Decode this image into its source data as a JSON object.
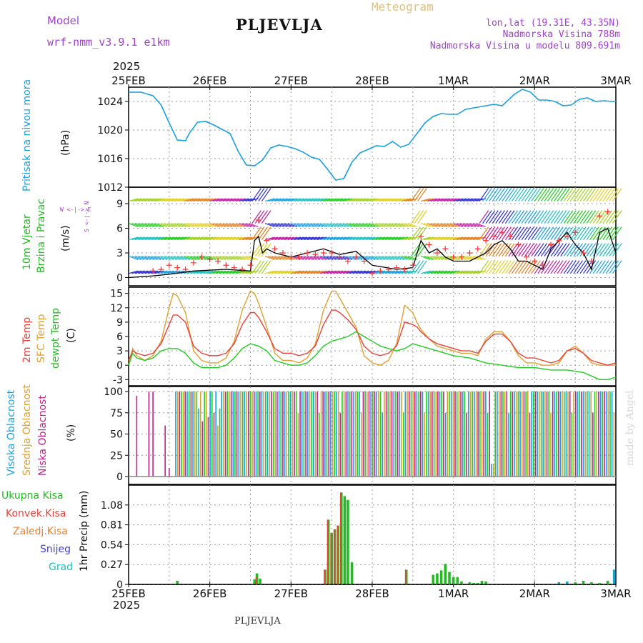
{
  "header": {
    "model_label": "Model",
    "model_name": "wrf-nmm_v3.9.1 e1km",
    "station": "PLJEVLJA",
    "product": "Meteogram",
    "lonlat": "lon,lat (19.31E, 43.35N)",
    "elevation": "Nadmorska Visina 788m",
    "model_elevation": "Nadmorska Visina u modelu 809.691m",
    "year_top": "2025",
    "year_bottom": "2025",
    "footer_station": "PLJEVLJA",
    "watermark": "made by Angel"
  },
  "colors": {
    "pressure": "#1aa0e0",
    "temp2m": "#e8403a",
    "sfc_temp": "#e0a030",
    "dewpt": "#22cc22",
    "high_cloud": "#1aa0e0",
    "mid_cloud": "#e0a030",
    "low_cloud": "#c0208a",
    "total_precip": "#22bb22",
    "conv_precip": "#e8403a",
    "frozen_precip": "#ee8030",
    "snow": "#4040e0",
    "hail": "#20c0c0",
    "wind_speed": "#000000",
    "wind_gust": "#ff3030"
  },
  "x_ticks": [
    "25FEB",
    "26FEB",
    "27FEB",
    "28FEB",
    "1MAR",
    "2MAR",
    "3MAR"
  ],
  "panel_labels": {
    "pressure": {
      "title": "Pritisak na nivou mora",
      "unit": "(hPa)"
    },
    "wind": {
      "line1": "10m Vjetar",
      "line2": "Brzina i Pravac",
      "unit": "(m/s)",
      "compass": "W <-|-> E",
      "compass_vert": "S <-|-> N"
    },
    "temp": {
      "t2m": "2m Temp",
      "sfc": "SFC Temp",
      "dew": "dewpt Temp",
      "unit": "(C)"
    },
    "cloud": {
      "high": "Visoka Oblacnost",
      "mid": "Srednja Oblacnost",
      "low": "Niska Oblacnost",
      "unit": "(%)"
    },
    "precip": {
      "unit": "1hr Precip (mm)",
      "legend": [
        "Ukupna Kisa",
        "Konvek.Kisa",
        "Zaledj.Kisa",
        "Snijeg",
        "Grad"
      ]
    }
  },
  "chart_data": [
    {
      "type": "line",
      "panel": "pressure",
      "xlabel": "",
      "ylabel": "(hPa)",
      "x_range_days": [
        0,
        6
      ],
      "ylim": [
        1012,
        1026
      ],
      "yticks": [
        1012,
        1016,
        1020,
        1024
      ],
      "series": [
        {
          "name": "Pritisak na nivou mora",
          "x": [
            0,
            0.15,
            0.3,
            0.4,
            0.5,
            0.6,
            0.7,
            0.75,
            0.85,
            0.95,
            1.05,
            1.15,
            1.25,
            1.35,
            1.45,
            1.55,
            1.65,
            1.75,
            1.85,
            1.95,
            2.05,
            2.15,
            2.25,
            2.35,
            2.45,
            2.55,
            2.65,
            2.75,
            2.85,
            2.95,
            3.05,
            3.15,
            3.25,
            3.35,
            3.45,
            3.55,
            3.65,
            3.75,
            3.85,
            3.95,
            4.05,
            4.15,
            4.25,
            4.35,
            4.5,
            4.6,
            4.75,
            4.85,
            4.95,
            5.05,
            5.15,
            5.25,
            5.35,
            5.45,
            5.55,
            5.65,
            5.75,
            5.85,
            5.95,
            6.0
          ],
          "y": [
            1025.3,
            1025.3,
            1024.8,
            1023.5,
            1021.0,
            1018.6,
            1018.5,
            1019.6,
            1021.1,
            1021.2,
            1020.7,
            1020.1,
            1019.5,
            1017.0,
            1015.1,
            1015.0,
            1015.8,
            1017.5,
            1017.9,
            1017.7,
            1017.4,
            1016.9,
            1016.2,
            1015.9,
            1014.5,
            1013.0,
            1013.2,
            1015.5,
            1016.8,
            1017.3,
            1017.8,
            1017.7,
            1018.4,
            1017.6,
            1018.0,
            1019.5,
            1021.0,
            1021.9,
            1022.3,
            1022.2,
            1022.2,
            1022.9,
            1023.1,
            1023.3,
            1023.6,
            1023.4,
            1025.0,
            1025.7,
            1025.3,
            1024.2,
            1024.2,
            1024.0,
            1023.4,
            1023.5,
            1024.3,
            1024.5,
            1024.0,
            1024.1,
            1024.0,
            1024.0
          ]
        }
      ]
    },
    {
      "type": "line",
      "panel": "wind",
      "xlabel": "",
      "ylabel": "(m/s)",
      "ylim": [
        -1,
        11
      ],
      "yticks": [
        0,
        3,
        6,
        9
      ],
      "series": [
        {
          "name": "speed",
          "x": [
            0,
            0.3,
            0.5,
            0.8,
            1.2,
            1.5,
            1.55,
            1.6,
            1.65,
            1.7,
            1.8,
            2.0,
            2.2,
            2.4,
            2.6,
            2.8,
            3.0,
            3.3,
            3.5,
            3.6,
            3.7,
            3.8,
            3.9,
            4.0,
            4.2,
            4.4,
            4.5,
            4.6,
            4.7,
            4.8,
            4.9,
            5.0,
            5.1,
            5.2,
            5.3,
            5.4,
            5.5,
            5.6,
            5.7,
            5.8,
            5.9,
            6.0
          ],
          "y": [
            0,
            0.2,
            0.4,
            0.8,
            1.0,
            0.8,
            4.5,
            5.0,
            3.0,
            3.5,
            3.0,
            2.5,
            3.0,
            3.5,
            2.8,
            3.2,
            1.5,
            1.0,
            1.2,
            4.5,
            3.0,
            3.5,
            2.5,
            2.0,
            2.0,
            3.0,
            4.0,
            4.5,
            3.5,
            2.0,
            2.0,
            1.5,
            1.0,
            3.5,
            4.5,
            5.5,
            4.0,
            3.0,
            1.0,
            5.5,
            6.0,
            3.0
          ]
        },
        {
          "name": "gust",
          "x": [
            0.3,
            0.4,
            0.5,
            0.6,
            0.7,
            0.8,
            0.9,
            1.0,
            1.1,
            1.2,
            1.3,
            1.4,
            1.5,
            1.6,
            1.7,
            1.8,
            1.9,
            2.0,
            2.1,
            2.2,
            2.3,
            2.4,
            2.5,
            2.6,
            2.7,
            2.8,
            2.9,
            3.0,
            3.1,
            3.2,
            3.3,
            3.4,
            3.5,
            3.6,
            3.7,
            3.8,
            3.9,
            4.0,
            4.1,
            4.2,
            4.3,
            4.4,
            4.5,
            4.6,
            4.7,
            4.8,
            4.9,
            5.0,
            5.1,
            5.2,
            5.3,
            5.4,
            5.5,
            5.6,
            5.7,
            5.8,
            5.9
          ],
          "y": [
            0.8,
            1.0,
            1.5,
            1.2,
            1.0,
            1.8,
            2.5,
            2.2,
            2.0,
            1.5,
            1.2,
            1.0,
            1.5,
            7.0,
            4.5,
            3.5,
            3.0,
            2.5,
            2.5,
            3.0,
            2.8,
            3.0,
            3.0,
            2.5,
            2.0,
            2.5,
            2.0,
            0.5,
            0.8,
            1.0,
            1.2,
            1.0,
            1.5,
            5.0,
            4.0,
            3.0,
            3.5,
            2.5,
            2.5,
            3.0,
            3.5,
            4.5,
            5.0,
            5.5,
            5.0,
            4.0,
            2.5,
            2.0,
            1.5,
            4.0,
            4.5,
            5.0,
            5.5,
            3.0,
            2.0,
            7.5,
            8.0
          ]
        }
      ]
    },
    {
      "type": "line",
      "panel": "temperature",
      "xlabel": "",
      "ylabel": "(C)",
      "ylim": [
        -4,
        16
      ],
      "yticks": [
        -3,
        0,
        3,
        6,
        9,
        12,
        15
      ],
      "series": [
        {
          "name": "2m Temp",
          "x": [
            0,
            0.05,
            0.1,
            0.2,
            0.3,
            0.4,
            0.5,
            0.55,
            0.6,
            0.7,
            0.8,
            0.9,
            1.0,
            1.1,
            1.2,
            1.3,
            1.4,
            1.5,
            1.55,
            1.6,
            1.7,
            1.8,
            1.9,
            2.0,
            2.1,
            2.2,
            2.3,
            2.4,
            2.5,
            2.55,
            2.6,
            2.7,
            2.8,
            2.9,
            3.0,
            3.1,
            3.2,
            3.3,
            3.4,
            3.5,
            3.55,
            3.6,
            3.7,
            3.8,
            3.9,
            4.0,
            4.1,
            4.2,
            4.3,
            4.4,
            4.5,
            4.6,
            4.7,
            4.8,
            4.9,
            5.0,
            5.1,
            5.2,
            5.3,
            5.4,
            5.5,
            5.6,
            5.7,
            5.8,
            5.9,
            6.0
          ],
          "y": [
            1,
            3,
            2.5,
            2.0,
            2.5,
            4.5,
            8.5,
            10.5,
            10.5,
            9.0,
            4.0,
            2.5,
            2.0,
            2.0,
            2.5,
            4.5,
            8.5,
            11.0,
            11.0,
            10.0,
            7.0,
            3.5,
            2.5,
            2.5,
            2.0,
            2.5,
            4.0,
            8.5,
            11.5,
            11.5,
            11.0,
            9.5,
            7.5,
            4.0,
            2.5,
            2.0,
            2.5,
            4.0,
            9.0,
            8.5,
            8.0,
            7.0,
            5.5,
            4.5,
            4.0,
            3.5,
            3.0,
            3.0,
            2.5,
            5.0,
            6.5,
            6.5,
            5.0,
            2.5,
            1.5,
            1.5,
            1.0,
            0.5,
            1.0,
            3.0,
            3.5,
            2.5,
            1.0,
            0.5,
            0.0,
            0.5
          ]
        },
        {
          "name": "SFC Temp",
          "x": [
            0,
            0.05,
            0.1,
            0.2,
            0.3,
            0.4,
            0.5,
            0.55,
            0.6,
            0.7,
            0.8,
            0.9,
            1.0,
            1.1,
            1.2,
            1.3,
            1.4,
            1.5,
            1.55,
            1.6,
            1.7,
            1.8,
            1.9,
            2.0,
            2.1,
            2.2,
            2.3,
            2.4,
            2.5,
            2.55,
            2.6,
            2.7,
            2.8,
            2.9,
            3.0,
            3.1,
            3.2,
            3.3,
            3.4,
            3.5,
            3.55,
            3.6,
            3.7,
            3.8,
            3.9,
            4.0,
            4.1,
            4.2,
            4.3,
            4.4,
            4.5,
            4.6,
            4.7,
            4.8,
            4.9,
            5.0,
            5.1,
            5.2,
            5.3,
            5.4,
            5.5,
            5.6,
            5.7,
            5.8,
            5.9,
            6.0
          ],
          "y": [
            0,
            3.5,
            2.0,
            1.0,
            2.0,
            5.0,
            12.0,
            15.0,
            14.5,
            11.0,
            3.0,
            1.0,
            0.5,
            0.5,
            1.5,
            5.0,
            11.5,
            15.5,
            15.0,
            13.0,
            8.0,
            2.5,
            1.0,
            1.0,
            0.5,
            1.5,
            4.5,
            11.5,
            15.5,
            15.5,
            14.0,
            11.0,
            8.0,
            2.0,
            0.5,
            0.0,
            1.0,
            4.5,
            12.5,
            11.0,
            9.0,
            7.5,
            5.5,
            4.0,
            3.5,
            3.0,
            2.5,
            2.5,
            2.0,
            5.5,
            7.0,
            7.0,
            5.0,
            2.0,
            0.5,
            0.5,
            0.0,
            0.0,
            0.5,
            3.0,
            4.0,
            2.5,
            0.5,
            0.0,
            0.0,
            0.0
          ]
        },
        {
          "name": "dewpt Temp",
          "x": [
            0,
            0.05,
            0.1,
            0.2,
            0.3,
            0.4,
            0.5,
            0.6,
            0.7,
            0.8,
            0.9,
            1.0,
            1.1,
            1.2,
            1.3,
            1.4,
            1.5,
            1.6,
            1.7,
            1.8,
            1.9,
            2.0,
            2.1,
            2.2,
            2.3,
            2.4,
            2.5,
            2.6,
            2.7,
            2.8,
            2.9,
            3.0,
            3.1,
            3.2,
            3.3,
            3.4,
            3.5,
            3.6,
            3.7,
            3.8,
            3.9,
            4.0,
            4.2,
            4.4,
            4.6,
            4.8,
            5.0,
            5.2,
            5.4,
            5.6,
            5.8,
            5.9,
            6.0
          ],
          "y": [
            0,
            2.5,
            1.5,
            1.0,
            1.5,
            3.0,
            3.5,
            3.5,
            2.5,
            0.5,
            -0.5,
            -0.5,
            -0.5,
            0.0,
            1.5,
            3.5,
            4.5,
            4.0,
            3.0,
            1.0,
            0.5,
            0.0,
            0.0,
            0.5,
            2.0,
            4.0,
            5.0,
            5.5,
            6.0,
            7.0,
            6.0,
            5.0,
            4.0,
            3.5,
            3.0,
            3.5,
            4.5,
            4.0,
            3.5,
            3.0,
            2.5,
            2.0,
            1.5,
            0.5,
            0.0,
            -0.5,
            -0.5,
            -1.0,
            -1.0,
            -1.5,
            -3.0,
            -3.0,
            -2.5
          ]
        }
      ]
    },
    {
      "type": "bar",
      "panel": "cloud",
      "xlabel": "",
      "ylabel": "(%)",
      "ylim": [
        0,
        100
      ],
      "yticks": [
        0,
        25,
        50,
        75,
        100
      ],
      "series": [
        {
          "name": "Visoka Oblacnost",
          "description": "mostly 100% from 25FEB 14h onward with gaps"
        },
        {
          "name": "Srednja Oblacnost",
          "description": "mostly 100% from 25FEB 14h onward, drops near 26FEB and 1MAR"
        },
        {
          "name": "Niska Oblacnost",
          "x": [
            0.1,
            0.25,
            0.3,
            0.45,
            0.5
          ],
          "y": [
            95,
            100,
            100,
            60,
            10
          ]
        }
      ]
    },
    {
      "type": "bar",
      "panel": "precip",
      "xlabel": "",
      "ylabel": "1hr Precip (mm)",
      "ylim": [
        0,
        1.35
      ],
      "yticks": [
        0,
        0.27,
        0.54,
        0.81,
        1.08
      ],
      "series": [
        {
          "name": "Ukupna Kisa",
          "x": [
            0.6,
            1.55,
            1.58,
            1.62,
            2.42,
            2.46,
            2.5,
            2.54,
            2.58,
            2.62,
            2.66,
            2.7,
            2.75,
            3.42,
            3.75,
            3.8,
            3.85,
            3.9,
            3.95,
            4.0,
            4.05,
            4.1,
            4.2,
            4.25,
            4.3,
            4.35,
            4.4,
            5.0,
            5.3,
            5.4,
            5.5,
            5.6,
            5.7,
            5.8,
            5.9,
            5.98
          ],
          "y": [
            0.05,
            0.07,
            0.15,
            0.08,
            0.2,
            0.88,
            0.7,
            0.75,
            0.8,
            1.25,
            1.2,
            1.15,
            0.3,
            0.2,
            0.13,
            0.15,
            0.19,
            0.28,
            0.17,
            0.1,
            0.1,
            0.04,
            0.03,
            0.02,
            0.02,
            0.05,
            0.04,
            0.01,
            0.03,
            0.04,
            0.03,
            0.05,
            0.03,
            0.02,
            0.05,
            0.2
          ]
        },
        {
          "name": "Konvek.Kisa",
          "x": [
            1.58,
            2.42,
            2.46,
            2.5,
            2.54,
            2.58,
            2.62,
            3.42
          ],
          "y": [
            0.1,
            0.2,
            0.88,
            0.7,
            0.75,
            0.8,
            1.25,
            0.2
          ]
        },
        {
          "name": "Snijeg",
          "x": [
            5.3,
            5.4,
            5.98
          ],
          "y": [
            0.03,
            0.04,
            0.2
          ]
        }
      ]
    }
  ]
}
